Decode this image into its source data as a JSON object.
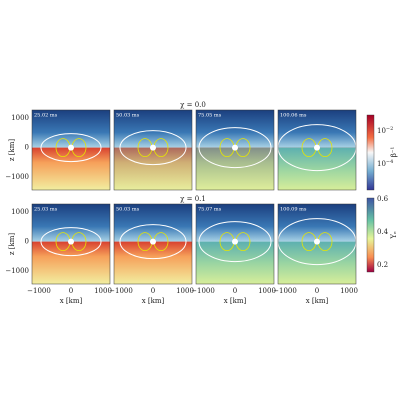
{
  "rows": [
    {
      "title": "χ = 0.0",
      "panels": [
        "25.02 ms",
        "50.03 ms",
        "75.05 ms",
        "100.06 ms"
      ]
    },
    {
      "title": "χ = 0.1",
      "panels": [
        "25.03 ms",
        "50.03 ms",
        "75.07 ms",
        "100.09 ms"
      ]
    }
  ],
  "y_axis": {
    "label": "z [km]",
    "ticks": [
      "1000",
      "0",
      "−1000"
    ]
  },
  "x_axis": {
    "label": "x [km]",
    "ticks": [
      "−1000",
      "0",
      "1000"
    ]
  },
  "colorbars": [
    {
      "label": "β⁻¹",
      "ticks": [
        {
          "base": "10",
          "exp": "−2"
        },
        {
          "base": "10",
          "exp": "−4"
        }
      ]
    },
    {
      "label": "Yₑ",
      "ticks": [
        "0.6",
        "0.4",
        "0.2"
      ]
    }
  ]
}
